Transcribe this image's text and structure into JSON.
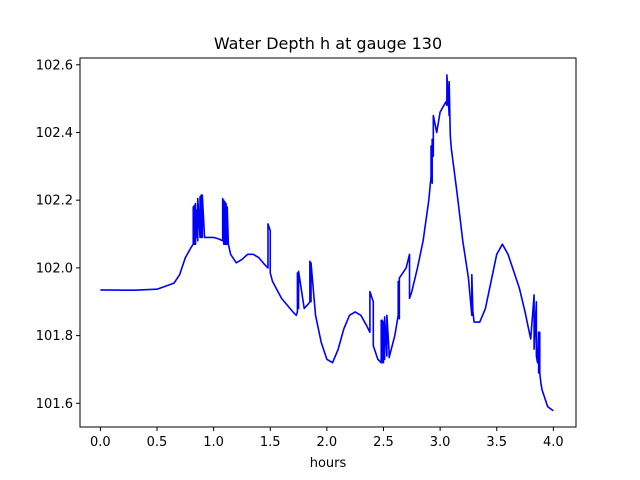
{
  "chart_data": {
    "type": "line",
    "title": "Water Depth h at gauge 130",
    "xlabel": "hours",
    "ylabel": "",
    "xlim": [
      -0.18,
      4.2
    ],
    "ylim": [
      101.53,
      102.62
    ],
    "xticks": [
      0.0,
      0.5,
      1.0,
      1.5,
      2.0,
      2.5,
      3.0,
      3.5,
      4.0
    ],
    "xtick_labels": [
      "0.0",
      "0.5",
      "1.0",
      "1.5",
      "2.0",
      "2.5",
      "3.0",
      "3.5",
      "4.0"
    ],
    "yticks": [
      101.6,
      101.8,
      102.0,
      102.2,
      102.4,
      102.6
    ],
    "ytick_labels": [
      "101.6",
      "101.8",
      "102.0",
      "102.2",
      "102.4",
      "102.6"
    ],
    "grid": false,
    "series": [
      {
        "color": "#0000ff",
        "x": [
          0.0,
          0.3,
          0.5,
          0.65,
          0.7,
          0.75,
          0.8,
          0.82,
          0.82,
          0.83,
          0.83,
          0.84,
          0.84,
          0.85,
          0.85,
          0.86,
          0.86,
          0.88,
          0.88,
          0.89,
          0.89,
          0.9,
          0.9,
          0.92,
          0.92,
          0.95,
          1.0,
          1.05,
          1.08,
          1.08,
          1.09,
          1.09,
          1.1,
          1.1,
          1.11,
          1.11,
          1.12,
          1.12,
          1.13,
          1.13,
          1.15,
          1.2,
          1.25,
          1.3,
          1.35,
          1.4,
          1.45,
          1.48,
          1.48,
          1.5,
          1.5,
          1.52,
          1.6,
          1.7,
          1.73,
          1.74,
          1.74,
          1.75,
          1.75,
          1.8,
          1.84,
          1.85,
          1.85,
          1.86,
          1.86,
          1.9,
          1.95,
          2.0,
          2.05,
          2.1,
          2.15,
          2.2,
          2.25,
          2.3,
          2.35,
          2.38,
          2.38,
          2.4,
          2.41,
          2.41,
          2.45,
          2.48,
          2.48,
          2.49,
          2.49,
          2.5,
          2.5,
          2.51,
          2.51,
          2.53,
          2.53,
          2.55,
          2.55,
          2.6,
          2.63,
          2.63,
          2.64,
          2.64,
          2.66,
          2.7,
          2.73,
          2.73,
          2.75,
          2.8,
          2.85,
          2.9,
          2.92,
          2.92,
          2.93,
          2.93,
          2.94,
          2.94,
          2.97,
          3.0,
          3.05,
          3.06,
          3.06,
          3.08,
          3.08,
          3.09,
          3.1,
          3.15,
          3.2,
          3.25,
          3.28,
          3.28,
          3.29,
          3.29,
          3.3,
          3.35,
          3.4,
          3.45,
          3.5,
          3.55,
          3.6,
          3.65,
          3.7,
          3.75,
          3.8,
          3.83,
          3.83,
          3.85,
          3.85,
          3.86,
          3.87,
          3.87,
          3.88,
          3.88,
          3.89,
          3.9,
          3.95,
          4.0
        ],
        "y": [
          101.935,
          101.934,
          101.937,
          101.955,
          101.98,
          102.03,
          102.06,
          102.07,
          102.18,
          102.07,
          102.185,
          102.07,
          102.19,
          102.09,
          102.17,
          102.08,
          102.205,
          102.09,
          102.21,
          102.09,
          102.215,
          102.09,
          102.215,
          102.09,
          102.09,
          102.09,
          102.09,
          102.085,
          102.08,
          102.205,
          102.07,
          102.2,
          102.07,
          102.195,
          102.07,
          102.19,
          102.07,
          102.18,
          102.07,
          102.07,
          102.04,
          102.015,
          102.025,
          102.04,
          102.04,
          102.03,
          102.01,
          102.0,
          102.13,
          102.11,
          101.985,
          101.96,
          101.91,
          101.87,
          101.86,
          101.87,
          101.985,
          101.88,
          101.99,
          101.88,
          101.895,
          101.9,
          102.02,
          101.9,
          102.015,
          101.86,
          101.78,
          101.73,
          101.72,
          101.76,
          101.82,
          101.86,
          101.87,
          101.86,
          101.83,
          101.81,
          101.93,
          101.91,
          101.9,
          101.77,
          101.73,
          101.72,
          101.845,
          101.72,
          101.845,
          101.72,
          101.84,
          101.73,
          101.855,
          101.74,
          101.86,
          101.75,
          101.735,
          101.8,
          101.86,
          101.96,
          101.85,
          101.97,
          101.98,
          102.0,
          102.04,
          101.91,
          101.93,
          102.0,
          102.08,
          102.2,
          102.27,
          102.36,
          102.25,
          102.38,
          102.33,
          102.45,
          102.4,
          102.46,
          102.49,
          102.48,
          102.57,
          102.45,
          102.55,
          102.39,
          102.35,
          102.22,
          102.08,
          101.97,
          101.86,
          101.98,
          101.86,
          101.87,
          101.84,
          101.84,
          101.88,
          101.96,
          102.04,
          102.07,
          102.04,
          101.99,
          101.94,
          101.87,
          101.79,
          101.92,
          101.76,
          101.9,
          101.74,
          101.72,
          101.81,
          101.69,
          101.81,
          101.69,
          101.66,
          101.64,
          101.59,
          101.578
        ]
      }
    ]
  }
}
